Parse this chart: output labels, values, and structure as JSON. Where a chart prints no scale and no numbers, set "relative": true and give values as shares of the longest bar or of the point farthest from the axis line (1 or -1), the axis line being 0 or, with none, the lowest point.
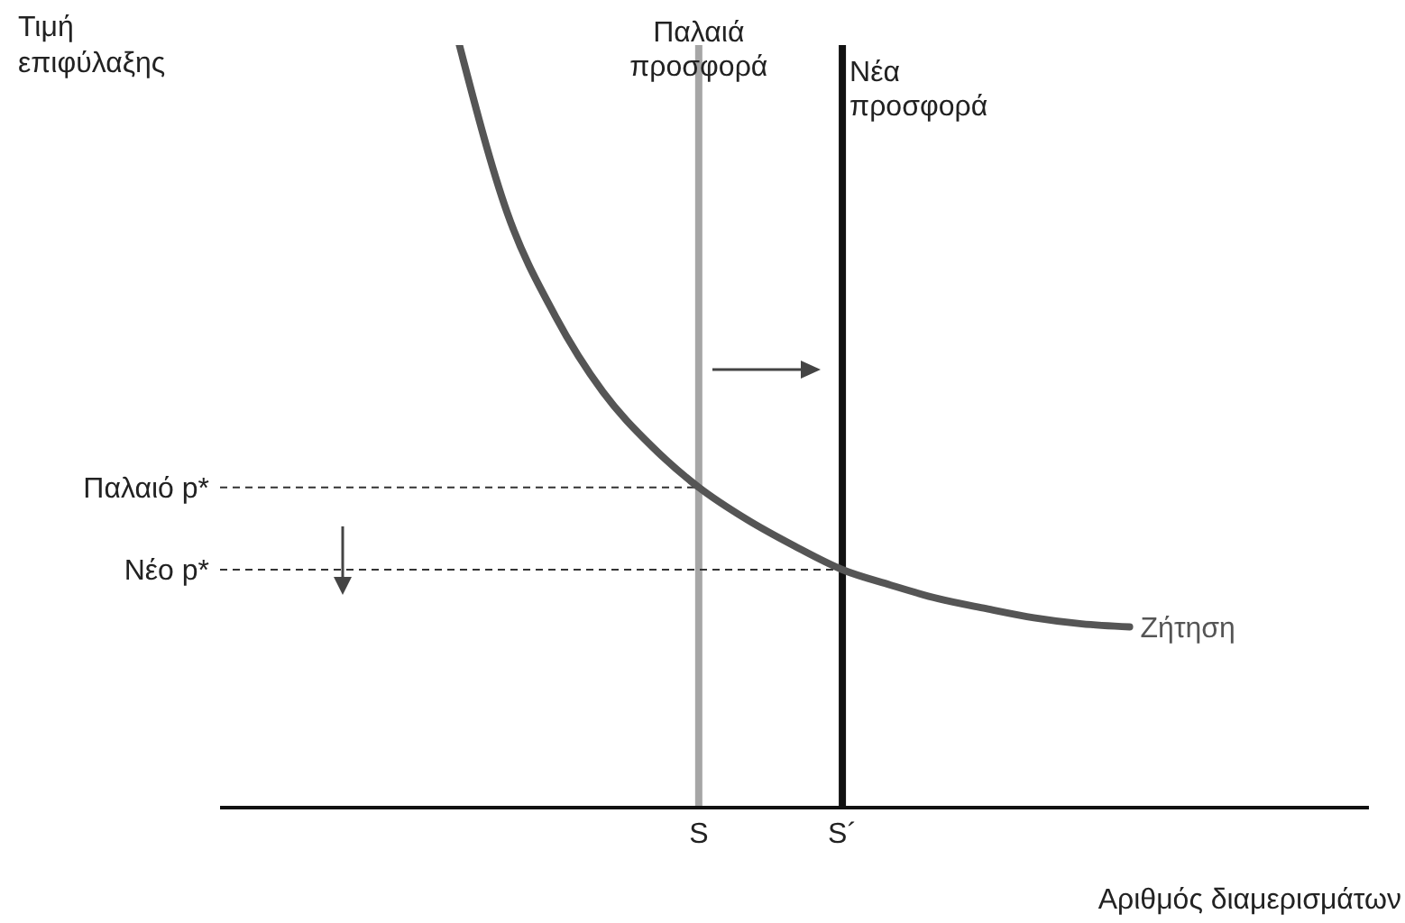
{
  "chart_data": {
    "type": "line",
    "relative": true,
    "xlabel": "Αριθμός διαμερισμάτων",
    "ylabel": "Τιμή επιφύλαξης",
    "marker": "none",
    "line_style": "solid",
    "categories": [
      null,
      null,
      null,
      null,
      null,
      null,
      null,
      null,
      null,
      null,
      "S",
      null,
      null,
      "S´",
      null,
      null,
      null,
      null,
      null,
      null,
      null,
      null,
      null,
      null,
      null
    ],
    "series": [
      {
        "name": "Ζήτηση",
        "color": "#555555",
        "values": [
          null,
          null,
          null,
          null,
          null,
          1.0,
          0.78,
          0.645,
          0.545,
          0.475,
          0.42,
          0.378,
          0.343,
          0.312,
          0.292,
          0.274,
          0.261,
          0.249,
          0.241,
          0.237,
          null,
          null,
          null,
          null,
          null
        ]
      }
    ],
    "ref_lines": [
      {
        "axis": "x",
        "value": "S",
        "label": "Παλαιά προσφορά",
        "color": "#a6a6a6",
        "line_style": "solid"
      },
      {
        "axis": "x",
        "value": "S´",
        "label": "Νέα προσφορά",
        "color": "#111111",
        "line_style": "solid"
      },
      {
        "axis": "y",
        "value": 0.42,
        "label": "Παλαιό p*",
        "color": "#333333",
        "line_style": "dashed"
      },
      {
        "axis": "y",
        "value": 0.312,
        "label": "Νέο p*",
        "color": "#333333",
        "line_style": "dashed"
      }
    ]
  }
}
